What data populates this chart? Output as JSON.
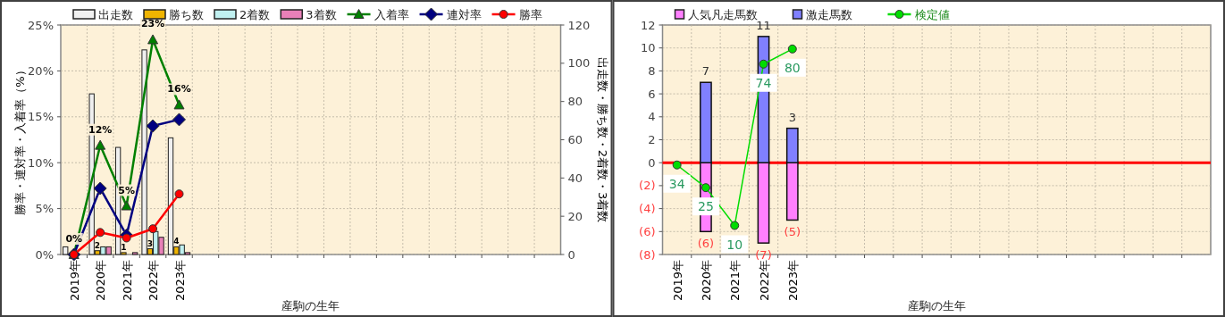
{
  "chart_data": [
    {
      "type": "bar",
      "categories": [
        "2019年",
        "2020年",
        "2021年",
        "2022年",
        "2023年",
        null,
        null,
        null,
        null,
        null,
        null,
        null,
        null,
        null,
        null,
        null,
        null,
        null,
        null
      ],
      "series": [
        {
          "name": "出走数",
          "color": "#f0f0f0",
          "axis": "y2",
          "values": [
            4,
            84,
            56,
            107,
            61,
            null,
            null,
            null,
            null,
            null,
            null,
            null,
            null,
            null,
            null,
            null,
            null,
            null,
            null
          ]
        },
        {
          "name": "勝ち数",
          "color": "#f0b400",
          "axis": "y2",
          "values": [
            null,
            2,
            1,
            3,
            4,
            null,
            null,
            null,
            null,
            null,
            null,
            null,
            null,
            null,
            null,
            null,
            null,
            null,
            null
          ],
          "value_labels": [
            null,
            "2",
            "1",
            "3",
            "4",
            null,
            null,
            null,
            null,
            null,
            null,
            null,
            null,
            null,
            null,
            null,
            null,
            null,
            null
          ]
        },
        {
          "name": "2着数",
          "color": "#c0f0f0",
          "axis": "y2",
          "values": [
            null,
            4,
            null,
            12,
            5,
            null,
            null,
            null,
            null,
            null,
            null,
            null,
            null,
            null,
            null,
            null,
            null,
            null,
            null
          ]
        },
        {
          "name": "3着数",
          "color": "#e880b8",
          "axis": "y2",
          "values": [
            null,
            4,
            1,
            9,
            1,
            null,
            null,
            null,
            null,
            null,
            null,
            null,
            null,
            null,
            null,
            null,
            null,
            null,
            null
          ]
        },
        {
          "name": "入着率",
          "type": "line",
          "marker": "triangle",
          "color": "#008000",
          "values": [
            0,
            11.9,
            5.3,
            23.4,
            16.3,
            null,
            null,
            null,
            null,
            null,
            null,
            null,
            null,
            null,
            null,
            null,
            null,
            null,
            null
          ],
          "value_labels": [
            "0%",
            "12%",
            "5%",
            "23%",
            "16%",
            null,
            null,
            null,
            null,
            null,
            null,
            null,
            null,
            null,
            null,
            null,
            null,
            null,
            null
          ]
        },
        {
          "name": "連対率",
          "type": "line",
          "marker": "diamond",
          "color": "#000080",
          "values": [
            0,
            7.2,
            2.1,
            14.0,
            14.7,
            null,
            null,
            null,
            null,
            null,
            null,
            null,
            null,
            null,
            null,
            null,
            null,
            null,
            null
          ]
        },
        {
          "name": "勝率",
          "type": "line",
          "marker": "circle",
          "color": "#ff0000",
          "values": [
            0,
            2.4,
            1.8,
            2.8,
            6.6,
            null,
            null,
            null,
            null,
            null,
            null,
            null,
            null,
            null,
            null,
            null,
            null,
            null,
            null
          ]
        }
      ],
      "xlabel": "産駒の生年",
      "ylabel": "勝率・連対率・入着率（%）",
      "y2label": "出走数・勝ち数・2着数・3着数",
      "ylim": [
        0,
        25
      ],
      "yticks": [
        {
          "value": 0,
          "label": "0%"
        },
        {
          "value": 5,
          "label": "5%"
        },
        {
          "value": 10,
          "label": "10%"
        },
        {
          "value": 15,
          "label": "15%"
        },
        {
          "value": 20,
          "label": "20%"
        },
        {
          "value": 25,
          "label": "25%"
        }
      ],
      "y2lim": [
        0,
        120
      ],
      "y2ticks": [
        0,
        20,
        40,
        60,
        80,
        100,
        120
      ],
      "grid": true,
      "legend": "top"
    },
    {
      "type": "bar",
      "stacked": true,
      "categories": [
        "2019年",
        "2020年",
        "2021年",
        "2022年",
        "2023年",
        null,
        null,
        null,
        null,
        null,
        null,
        null,
        null,
        null,
        null,
        null,
        null,
        null,
        null
      ],
      "series": [
        {
          "name": "人気凡走馬数",
          "color": "#ff80ff",
          "values": [
            null,
            -6,
            null,
            -7,
            -5,
            null,
            null,
            null,
            null,
            null,
            null,
            null,
            null,
            null,
            null,
            null,
            null,
            null,
            null
          ],
          "value_labels": [
            null,
            "(6)",
            null,
            "(7)",
            "(5)",
            null,
            null,
            null,
            null,
            null,
            null,
            null,
            null,
            null,
            null,
            null,
            null,
            null,
            null
          ]
        },
        {
          "name": "激走馬数",
          "color": "#8080ff",
          "values": [
            null,
            7,
            null,
            11,
            3,
            null,
            null,
            null,
            null,
            null,
            null,
            null,
            null,
            null,
            null,
            null,
            null,
            null,
            null
          ],
          "value_labels": [
            null,
            "7",
            null,
            "11",
            "3",
            null,
            null,
            null,
            null,
            null,
            null,
            null,
            null,
            null,
            null,
            null,
            null,
            null,
            null
          ]
        },
        {
          "name": "検定値",
          "type": "line",
          "marker": "circle",
          "axis": "y2",
          "color": "#00dd00",
          "values": [
            34,
            25,
            10,
            74,
            80,
            null,
            null,
            null,
            null,
            null,
            null,
            null,
            null,
            null,
            null,
            null,
            null,
            null,
            null
          ],
          "value_labels": [
            "34",
            "25",
            "10",
            "74",
            "80",
            null,
            null,
            null,
            null,
            null,
            null,
            null,
            null,
            null,
            null,
            null,
            null,
            null,
            null
          ]
        }
      ],
      "xlabel": "産駒の生年",
      "ylim": [
        -8,
        12
      ],
      "yticks": [
        {
          "value": -8,
          "label": "(8)"
        },
        {
          "value": -6,
          "label": "(6)"
        },
        {
          "value": -4,
          "label": "(4)"
        },
        {
          "value": -2,
          "label": "(2)"
        },
        0,
        2,
        4,
        6,
        8,
        10,
        12
      ],
      "y2lim": [
        -1.5,
        89.5
      ],
      "ref_lines": [
        {
          "axis": "y",
          "value": 0,
          "color": "#ff0000"
        }
      ],
      "grid": true,
      "legend": "top"
    }
  ]
}
